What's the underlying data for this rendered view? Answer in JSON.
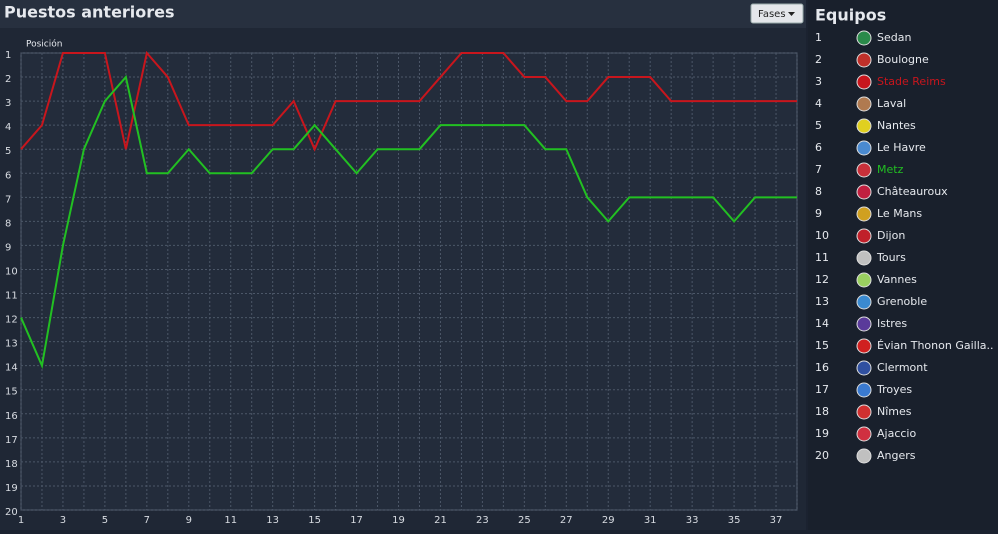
{
  "header": {
    "title": "Puestos anteriores",
    "button": "Fases"
  },
  "chart_data": {
    "type": "line",
    "y_label": "Posición",
    "x": [
      1,
      2,
      3,
      4,
      5,
      6,
      7,
      8,
      9,
      10,
      11,
      12,
      13,
      14,
      15,
      16,
      17,
      18,
      19,
      20,
      21,
      22,
      23,
      24,
      25,
      26,
      27,
      28,
      29,
      30,
      31,
      32,
      33,
      34,
      35,
      36,
      37,
      38
    ],
    "xlim": [
      1,
      38
    ],
    "xticks": [
      1,
      3,
      5,
      7,
      9,
      11,
      13,
      15,
      17,
      19,
      21,
      23,
      25,
      27,
      29,
      31,
      33,
      35,
      37
    ],
    "ylim": [
      1,
      20
    ],
    "y_reversed": true,
    "yticks": [
      1,
      2,
      3,
      4,
      5,
      6,
      7,
      8,
      9,
      10,
      11,
      12,
      13,
      14,
      15,
      16,
      17,
      18,
      19,
      20
    ],
    "grid": true,
    "series": [
      {
        "color": "#c8161d",
        "values": [
          5,
          4,
          1,
          1,
          1,
          5,
          1,
          2,
          4,
          4,
          4,
          4,
          4,
          3,
          5,
          3,
          3,
          3,
          3,
          3,
          2,
          1,
          1,
          1,
          2,
          2,
          3,
          3,
          2,
          2,
          2,
          3,
          3,
          3,
          3,
          3,
          3,
          3
        ]
      },
      {
        "color": "#22c022",
        "values": [
          12,
          14,
          9,
          5,
          3,
          2,
          6,
          6,
          5,
          6,
          6,
          6,
          5,
          5,
          4,
          5,
          6,
          5,
          5,
          5,
          4,
          4,
          4,
          4,
          4,
          5,
          5,
          7,
          8,
          7,
          7,
          7,
          7,
          7,
          8,
          7,
          7,
          7
        ]
      }
    ]
  },
  "teams": {
    "title": "Equipos",
    "rows": [
      {
        "rank": 1,
        "name": "Sedan"
      },
      {
        "rank": 2,
        "name": "Boulogne"
      },
      {
        "rank": 3,
        "name": "Stade Reims",
        "color": "#c8161d"
      },
      {
        "rank": 4,
        "name": "Laval"
      },
      {
        "rank": 5,
        "name": "Nantes"
      },
      {
        "rank": 6,
        "name": "Le Havre"
      },
      {
        "rank": 7,
        "name": "Metz",
        "color": "#22c022"
      },
      {
        "rank": 8,
        "name": "Châteauroux"
      },
      {
        "rank": 9,
        "name": "Le Mans"
      },
      {
        "rank": 10,
        "name": "Dijon"
      },
      {
        "rank": 11,
        "name": "Tours"
      },
      {
        "rank": 12,
        "name": "Vannes"
      },
      {
        "rank": 13,
        "name": "Grenoble"
      },
      {
        "rank": 14,
        "name": "Istres"
      },
      {
        "rank": 15,
        "name": "Évian Thonon Gailla.."
      },
      {
        "rank": 16,
        "name": "Clermont"
      },
      {
        "rank": 17,
        "name": "Troyes"
      },
      {
        "rank": 18,
        "name": "Nîmes"
      },
      {
        "rank": 19,
        "name": "Ajaccio"
      },
      {
        "rank": 20,
        "name": "Angers"
      }
    ]
  }
}
